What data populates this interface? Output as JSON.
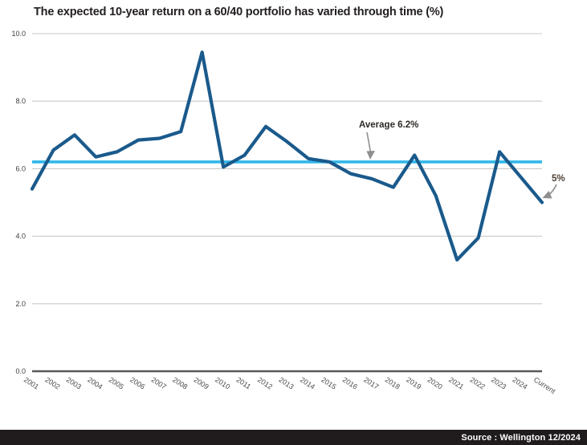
{
  "title": "The expected 10-year return on a 60/40 portfolio has varied through time (%)",
  "source_bar": {
    "text": "Source : Wellington 12/2024"
  },
  "chart_data": {
    "type": "line",
    "title": "The expected 10-year return on a 60/40 portfolio has varied through time (%)",
    "categories": [
      "2001",
      "2002",
      "2003",
      "2004",
      "2005",
      "2006",
      "2007",
      "2008",
      "2009",
      "2010",
      "2011",
      "2012",
      "2013",
      "2014",
      "2015",
      "2016",
      "2017",
      "2018",
      "2019",
      "2020",
      "2021",
      "2022",
      "2023",
      "2024",
      "Current"
    ],
    "values": [
      5.4,
      6.55,
      7.0,
      6.35,
      6.5,
      6.85,
      6.9,
      7.1,
      9.45,
      6.05,
      6.4,
      7.25,
      6.8,
      6.3,
      6.2,
      5.85,
      5.7,
      5.45,
      6.4,
      5.2,
      3.3,
      3.95,
      6.5,
      5.75,
      5.0
    ],
    "xlabel": "",
    "ylabel": "",
    "ylim": [
      0,
      10
    ],
    "yticks": [
      0,
      2,
      4,
      6,
      8,
      10
    ],
    "ytick_labels": [
      "0.0",
      "2.0",
      "4.0",
      "6.0",
      "8.0",
      "10.0"
    ],
    "grid": "horizontal",
    "legend": "none",
    "average_line": {
      "value": 6.2,
      "label": "Average 6.2%"
    },
    "end_annotation": {
      "label": "5%",
      "points_to": "Current",
      "value": 5.0
    },
    "colors": {
      "line": "#1a5a8c",
      "average_line": "#31b7e9",
      "gridline": "#c9c9c9",
      "axis": "#57585a",
      "ytick_text": "#3d3d3d",
      "xtick_text": "#4b4b4b",
      "average_label_text": "#2d2925",
      "end_label_text": "#4e4136",
      "arrow": "#8f8f8f"
    }
  }
}
